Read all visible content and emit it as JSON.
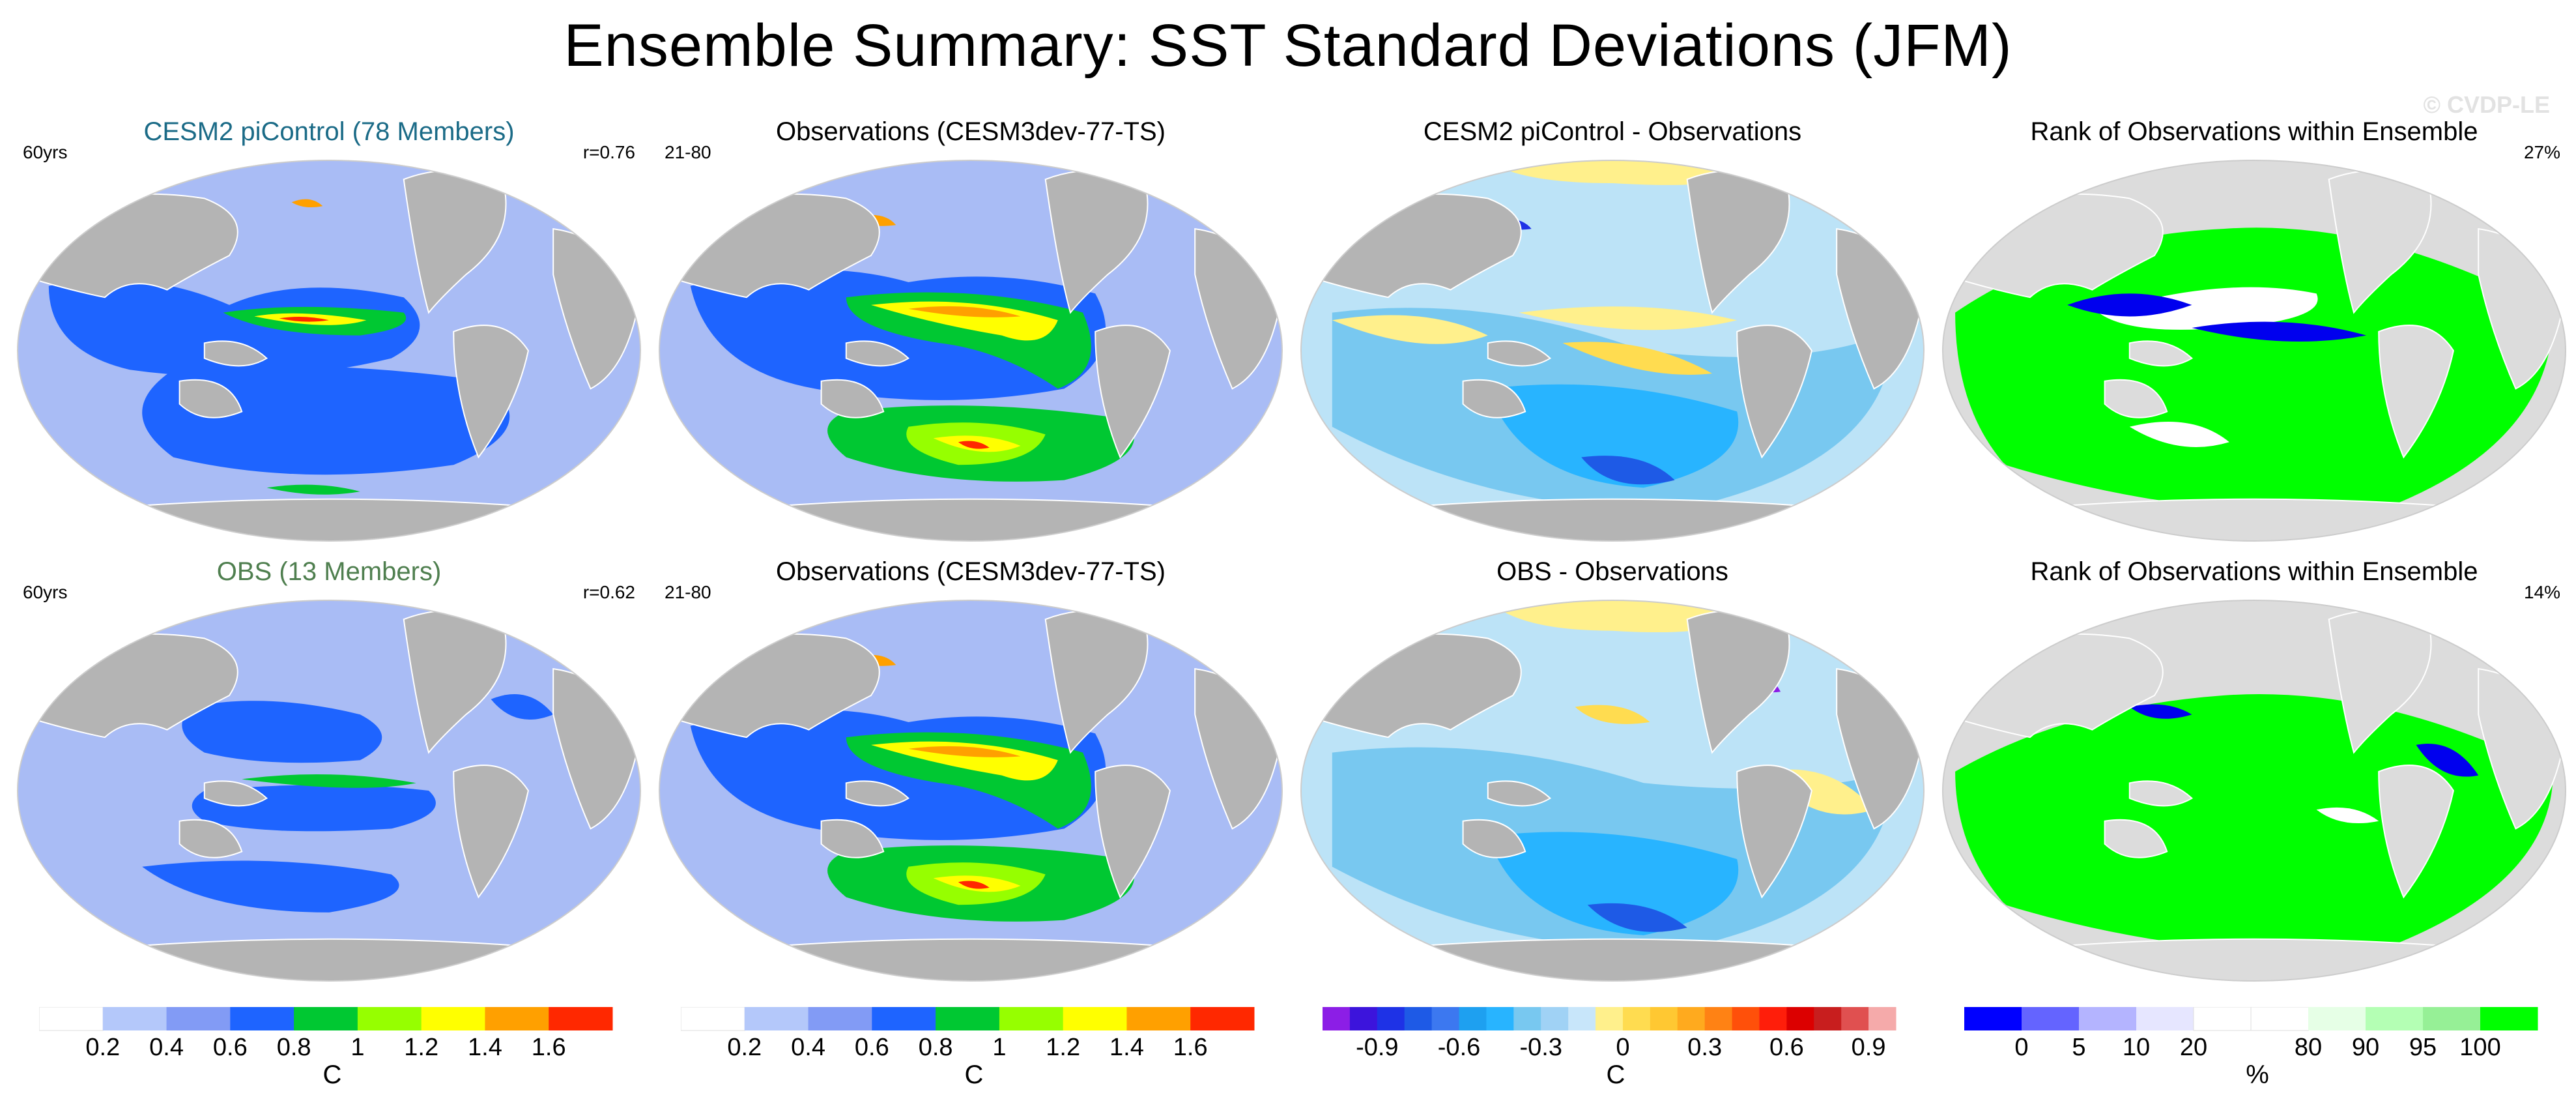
{
  "title": "Ensemble Summary: SST Standard Deviations (JFM)",
  "watermark": "© CVDP-LE",
  "colors": {
    "land": "#b4b4b4",
    "rank_land": "#dcdcdc",
    "ocean_base": "#a9bcf5",
    "ocean_diff_base": "#bce3f7",
    "rank_green": "#00ff00",
    "rank_blue": "#0000ee"
  },
  "panels": [
    {
      "title": "CESM2 piControl (78 Members)",
      "title_color": "#1b6b87",
      "stat_left": "60yrs",
      "stat_right": "r=0.76",
      "style": "model"
    },
    {
      "title": "Observations (CESM3dev-77-TS)",
      "title_color": "#000000",
      "stat_left": "21-80",
      "stat_right": "",
      "style": "obs"
    },
    {
      "title": "CESM2 piControl - Observations",
      "title_color": "#000000",
      "stat_left": "",
      "stat_right": "",
      "style": "diff"
    },
    {
      "title": "Rank of Observations within Ensemble",
      "title_color": "#000000",
      "stat_left": "",
      "stat_right": "27%",
      "style": "rank"
    },
    {
      "title": "OBS (13 Members)",
      "title_color": "#4f7f4f",
      "stat_left": "60yrs",
      "stat_right": "r=0.62",
      "style": "model2"
    },
    {
      "title": "Observations (CESM3dev-77-TS)",
      "title_color": "#000000",
      "stat_left": "21-80",
      "stat_right": "",
      "style": "obs"
    },
    {
      "title": "OBS - Observations",
      "title_color": "#000000",
      "stat_left": "",
      "stat_right": "",
      "style": "diff2"
    },
    {
      "title": "Rank of Observations within Ensemble",
      "title_color": "#000000",
      "stat_left": "",
      "stat_right": "14%",
      "style": "rank2"
    }
  ],
  "colorbars": [
    {
      "unit": "C",
      "colors": [
        "#ffffff",
        "#b4c8fa",
        "#829bf5",
        "#1e64ff",
        "#00c832",
        "#96ff00",
        "#ffff00",
        "#ffa000",
        "#ff2800"
      ],
      "tick_labels": [
        "0.2",
        "0.4",
        "0.6",
        "0.8",
        "1",
        "1.2",
        "1.4",
        "1.6"
      ]
    },
    {
      "unit": "C",
      "colors": [
        "#ffffff",
        "#b4c8fa",
        "#829bf5",
        "#1e64ff",
        "#00c832",
        "#96ff00",
        "#ffff00",
        "#ffa000",
        "#ff2800"
      ],
      "tick_labels": [
        "0.2",
        "0.4",
        "0.6",
        "0.8",
        "1",
        "1.2",
        "1.4",
        "1.6"
      ]
    },
    {
      "unit": "C",
      "colors": [
        "#8c1ee6",
        "#3c14dc",
        "#1e32e6",
        "#1e5ae6",
        "#3c78f0",
        "#1ea0f0",
        "#28b4ff",
        "#78c8f0",
        "#a0d2f5",
        "#c8e6fa",
        "#fff08c",
        "#ffdc50",
        "#ffc832",
        "#ffaa1e",
        "#ff8214",
        "#ff500a",
        "#ff1e0a",
        "#dc0000",
        "#c81e1e",
        "#e05050",
        "#f5aaaa"
      ],
      "tick_labels": [
        "-0.9",
        "-0.6",
        "-0.3",
        "0",
        "0.3",
        "0.6",
        "0.9"
      ]
    },
    {
      "unit": "%",
      "colors": [
        "#0000ff",
        "#6464ff",
        "#b4b4ff",
        "#e6e6ff",
        "#ffffff",
        "#ffffff",
        "#e6ffe6",
        "#b4ffb4",
        "#96f096",
        "#00ff00"
      ],
      "tick_labels": [
        "0",
        "5",
        "10",
        "20",
        "80",
        "90",
        "95",
        "100"
      ]
    }
  ]
}
